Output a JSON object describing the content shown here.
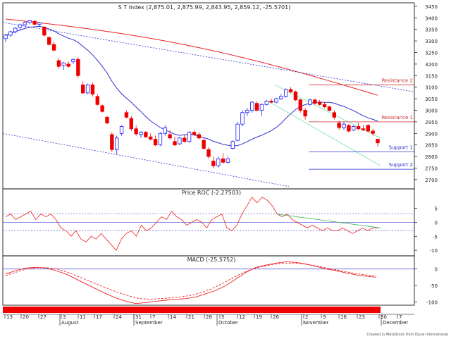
{
  "chart_data": [
    {
      "type": "candlestick",
      "title": "S T Index (2,875.01, 2,875.99, 2,843.95, 2,859.12, -25.5701)",
      "y_ticks": [
        2700,
        2750,
        2800,
        2850,
        2900,
        2950,
        3000,
        3050,
        3100,
        3150,
        3200,
        3250,
        3300,
        3350,
        3400,
        3450
      ],
      "ylim": [
        2660,
        3465
      ],
      "candles": [
        {
          "o": 3310,
          "h": 3330,
          "l": 3295,
          "c": 3325
        },
        {
          "o": 3325,
          "h": 3345,
          "l": 3318,
          "c": 3340
        },
        {
          "o": 3340,
          "h": 3360,
          "l": 3332,
          "c": 3355
        },
        {
          "o": 3358,
          "h": 3375,
          "l": 3350,
          "c": 3370
        },
        {
          "o": 3370,
          "h": 3385,
          "l": 3360,
          "c": 3380
        },
        {
          "o": 3380,
          "h": 3392,
          "l": 3372,
          "c": 3388
        },
        {
          "o": 3385,
          "h": 3390,
          "l": 3368,
          "c": 3372
        },
        {
          "o": 3372,
          "h": 3382,
          "l": 3360,
          "c": 3378
        },
        {
          "o": 3360,
          "h": 3365,
          "l": 3320,
          "c": 3325
        },
        {
          "o": 3315,
          "h": 3320,
          "l": 3280,
          "c": 3285
        },
        {
          "o": 3285,
          "h": 3295,
          "l": 3255,
          "c": 3260
        },
        {
          "o": 3215,
          "h": 3225,
          "l": 3180,
          "c": 3190
        },
        {
          "o": 3195,
          "h": 3210,
          "l": 3175,
          "c": 3205
        },
        {
          "o": 3200,
          "h": 3212,
          "l": 3185,
          "c": 3190
        },
        {
          "o": 3210,
          "h": 3225,
          "l": 3200,
          "c": 3220
        },
        {
          "o": 3220,
          "h": 3230,
          "l": 3140,
          "c": 3150
        },
        {
          "o": 3110,
          "h": 3125,
          "l": 3070,
          "c": 3075
        },
        {
          "o": 3075,
          "h": 3115,
          "l": 3070,
          "c": 3110
        },
        {
          "o": 3110,
          "h": 3120,
          "l": 3060,
          "c": 3070
        },
        {
          "o": 3060,
          "h": 3070,
          "l": 3020,
          "c": 3025
        },
        {
          "o": 3020,
          "h": 3025,
          "l": 2990,
          "c": 2995
        },
        {
          "o": 2970,
          "h": 2975,
          "l": 2940,
          "c": 2945
        },
        {
          "o": 2895,
          "h": 2905,
          "l": 2820,
          "c": 2830
        },
        {
          "o": 2830,
          "h": 2890,
          "l": 2810,
          "c": 2880
        },
        {
          "o": 2900,
          "h": 2935,
          "l": 2890,
          "c": 2930
        },
        {
          "o": 2990,
          "h": 3000,
          "l": 2965,
          "c": 2970
        },
        {
          "o": 2965,
          "h": 2975,
          "l": 2910,
          "c": 2920
        },
        {
          "o": 2920,
          "h": 2935,
          "l": 2890,
          "c": 2898
        },
        {
          "o": 2895,
          "h": 2910,
          "l": 2880,
          "c": 2905
        },
        {
          "o": 2905,
          "h": 2910,
          "l": 2880,
          "c": 2885
        },
        {
          "o": 2885,
          "h": 2900,
          "l": 2870,
          "c": 2875
        },
        {
          "o": 2875,
          "h": 2890,
          "l": 2845,
          "c": 2850
        },
        {
          "o": 2850,
          "h": 2905,
          "l": 2845,
          "c": 2900
        },
        {
          "o": 2900,
          "h": 2935,
          "l": 2890,
          "c": 2925
        },
        {
          "o": 2895,
          "h": 2915,
          "l": 2875,
          "c": 2880
        },
        {
          "o": 2865,
          "h": 2885,
          "l": 2845,
          "c": 2850
        },
        {
          "o": 2855,
          "h": 2885,
          "l": 2850,
          "c": 2880
        },
        {
          "o": 2880,
          "h": 2895,
          "l": 2860,
          "c": 2865
        },
        {
          "o": 2865,
          "h": 2910,
          "l": 2860,
          "c": 2905
        },
        {
          "o": 2905,
          "h": 2915,
          "l": 2890,
          "c": 2895
        },
        {
          "o": 2895,
          "h": 2905,
          "l": 2875,
          "c": 2880
        },
        {
          "o": 2870,
          "h": 2880,
          "l": 2830,
          "c": 2835
        },
        {
          "o": 2830,
          "h": 2840,
          "l": 2790,
          "c": 2800
        },
        {
          "o": 2780,
          "h": 2800,
          "l": 2750,
          "c": 2760
        },
        {
          "o": 2760,
          "h": 2800,
          "l": 2752,
          "c": 2790
        },
        {
          "o": 2790,
          "h": 2815,
          "l": 2770,
          "c": 2775
        },
        {
          "o": 2775,
          "h": 2800,
          "l": 2770,
          "c": 2790
        },
        {
          "o": 2835,
          "h": 2870,
          "l": 2830,
          "c": 2865
        },
        {
          "o": 2870,
          "h": 2950,
          "l": 2865,
          "c": 2940
        },
        {
          "o": 2940,
          "h": 3000,
          "l": 2930,
          "c": 2990
        },
        {
          "o": 2990,
          "h": 3010,
          "l": 2975,
          "c": 3000
        },
        {
          "o": 3000,
          "h": 3040,
          "l": 2990,
          "c": 3035
        },
        {
          "o": 3030,
          "h": 3040,
          "l": 2995,
          "c": 3000
        },
        {
          "o": 3000,
          "h": 3030,
          "l": 2975,
          "c": 3025
        },
        {
          "o": 3025,
          "h": 3045,
          "l": 3020,
          "c": 3040
        },
        {
          "o": 3040,
          "h": 3050,
          "l": 3030,
          "c": 3035
        },
        {
          "o": 3035,
          "h": 3055,
          "l": 3030,
          "c": 3050
        },
        {
          "o": 3050,
          "h": 3070,
          "l": 3045,
          "c": 3060
        },
        {
          "o": 3060,
          "h": 3095,
          "l": 3055,
          "c": 3090
        },
        {
          "o": 3090,
          "h": 3100,
          "l": 3075,
          "c": 3080
        },
        {
          "o": 3080,
          "h": 3085,
          "l": 3040,
          "c": 3045
        },
        {
          "o": 3045,
          "h": 3050,
          "l": 2990,
          "c": 3000
        },
        {
          "o": 3000,
          "h": 3010,
          "l": 2960,
          "c": 2975
        },
        {
          "o": 3025,
          "h": 3050,
          "l": 3020,
          "c": 3045
        },
        {
          "o": 3045,
          "h": 3050,
          "l": 3025,
          "c": 3030
        },
        {
          "o": 3035,
          "h": 3045,
          "l": 3020,
          "c": 3025
        },
        {
          "o": 3025,
          "h": 3035,
          "l": 3010,
          "c": 3015
        },
        {
          "o": 3015,
          "h": 3020,
          "l": 2995,
          "c": 3000
        },
        {
          "o": 2990,
          "h": 3000,
          "l": 2960,
          "c": 2970
        },
        {
          "o": 2945,
          "h": 2955,
          "l": 2915,
          "c": 2925
        },
        {
          "o": 2925,
          "h": 2950,
          "l": 2915,
          "c": 2940
        },
        {
          "o": 2935,
          "h": 2940,
          "l": 2905,
          "c": 2910
        },
        {
          "o": 2915,
          "h": 2935,
          "l": 2910,
          "c": 2930
        },
        {
          "o": 2930,
          "h": 2945,
          "l": 2915,
          "c": 2920
        },
        {
          "o": 2920,
          "h": 2935,
          "l": 2910,
          "c": 2915
        },
        {
          "o": 2935,
          "h": 2940,
          "l": 2905,
          "c": 2910
        },
        {
          "o": 2910,
          "h": 2920,
          "l": 2890,
          "c": 2900
        },
        {
          "o": 2875,
          "h": 2876,
          "l": 2844,
          "c": 2859
        }
      ],
      "levels": [
        {
          "label": "Resistance 2",
          "value": 3110
        },
        {
          "label": "Resistance 1",
          "value": 2950
        },
        {
          "label": "Support 1",
          "value": 2820
        },
        {
          "label": "Support 2",
          "value": 2745
        }
      ]
    },
    {
      "type": "line",
      "title": "Price ROC (-2.27503)",
      "y_ticks": [
        5,
        0,
        -5,
        -10
      ],
      "ylim": [
        -12,
        12
      ],
      "reference_lines": [
        3,
        -3
      ],
      "series": [
        {
          "values": [
            2,
            3,
            1,
            2,
            3,
            4,
            1,
            3,
            2,
            3,
            1,
            -2,
            -3,
            -5,
            -3,
            -6,
            -7,
            -5,
            -6,
            -4,
            -6,
            -8,
            -10,
            -6,
            -4,
            -3,
            -5,
            -1,
            -3,
            -2,
            0,
            2,
            1,
            4,
            2,
            1,
            -1,
            0,
            1,
            0,
            -2,
            1,
            2,
            3,
            -2,
            -3,
            -1,
            3,
            6,
            9,
            7,
            9,
            8,
            6,
            3,
            2,
            3,
            1,
            0,
            -1,
            -2,
            -1,
            -2,
            -3,
            -2,
            -3,
            -3,
            -2,
            -3,
            -4,
            -3,
            -2,
            -3,
            -2,
            -2
          ]
        }
      ]
    },
    {
      "type": "line",
      "title": "MACD (-25.5752)",
      "y_ticks": [
        0,
        -50,
        -100
      ],
      "ylim": [
        -110,
        40
      ],
      "series": [
        {
          "values": [
            -15,
            -5,
            3,
            5,
            3,
            -5,
            -15,
            -30,
            -45,
            -60,
            -75,
            -88,
            -98,
            -105,
            -102,
            -98,
            -95,
            -92,
            -90,
            -85,
            -75,
            -65,
            -50,
            -30,
            -10,
            5,
            12,
            18,
            22,
            20,
            15,
            8,
            0,
            -5,
            -12,
            -18,
            -22,
            -25
          ]
        },
        {
          "values": [
            -20,
            -10,
            0,
            4,
            4,
            0,
            -10,
            -22,
            -35,
            -48,
            -60,
            -72,
            -82,
            -90,
            -92,
            -90,
            -88,
            -85,
            -80,
            -72,
            -60,
            -45,
            -28,
            -12,
            0,
            8,
            14,
            18,
            18,
            15,
            10,
            4,
            -2,
            -8,
            -14,
            -18,
            -21
          ]
        }
      ]
    },
    {
      "type": "date-axis",
      "ticks": [
        "13",
        "20",
        "27",
        "3",
        "11",
        "17",
        "24",
        "31",
        "7",
        "14",
        "21",
        "28",
        "5",
        "12",
        "19",
        "26",
        "2",
        "9",
        "16",
        "23",
        "30",
        "7"
      ],
      "months": [
        "August",
        "September",
        "October",
        "November",
        "December"
      ]
    }
  ],
  "footer": "Created in MetaStock from Equis International",
  "colors": {
    "up": "#1a1aff",
    "down": "#ee0000",
    "ma_red": "#ee2020",
    "ma_blue": "#3030d0",
    "ref": "#6060e0",
    "level": "#d03030",
    "channel": "#70dfa0",
    "bar": "#ee0000"
  }
}
